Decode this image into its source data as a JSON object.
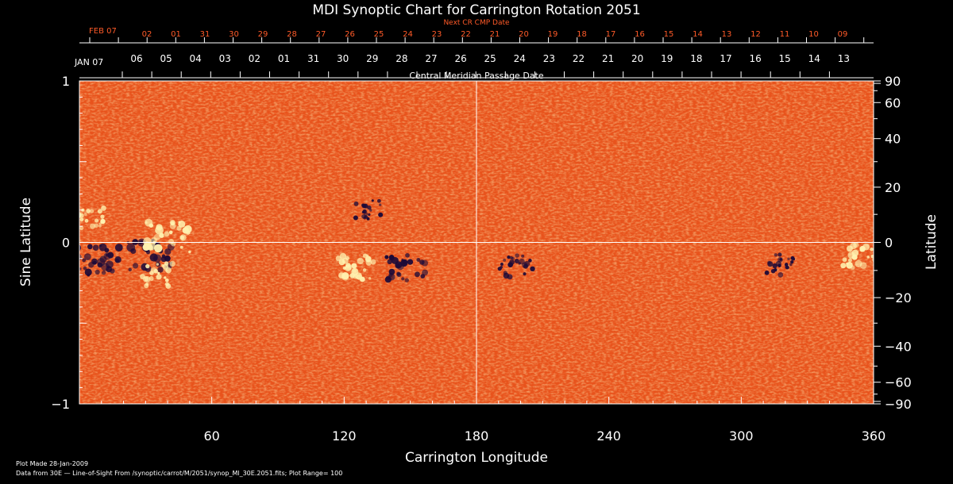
{
  "chart_data": {
    "type": "heatmap",
    "title": "MDI Synoptic Chart for Carrington Rotation 2051",
    "xlabel": "Carrington Longitude",
    "ylabel_left": "Sine Latitude",
    "ylabel_right": "Latitude",
    "xlim": [
      0,
      360
    ],
    "ylim": [
      -1,
      1
    ],
    "x_ticks": [
      "60",
      "120",
      "180",
      "240",
      "300",
      "360"
    ],
    "x_tick_values": [
      60,
      120,
      180,
      240,
      300,
      360
    ],
    "left_ticks": [
      "1",
      "0",
      "−1"
    ],
    "left_tick_values": [
      1,
      0,
      -1
    ],
    "right_ticks": [
      "90",
      "60",
      "40",
      "20",
      "0",
      "−20",
      "−40",
      "−60",
      "−90"
    ],
    "right_tick_values": [
      90,
      60,
      40,
      20,
      0,
      -20,
      -40,
      -60,
      -90
    ],
    "top_axis_label": "Central Meridian Passage Date",
    "top_axis_start": "JAN 07",
    "top_dates": [
      "06",
      "05",
      "04",
      "03",
      "02",
      "01",
      "31",
      "30",
      "29",
      "28",
      "27",
      "26",
      "25",
      "24",
      "23",
      "22",
      "21",
      "20",
      "19",
      "18",
      "17",
      "16",
      "15",
      "14",
      "13"
    ],
    "next_axis_label": "Next CR CMP Date",
    "next_axis_start": "FEB 07",
    "next_dates": [
      "02",
      "01",
      "31",
      "30",
      "29",
      "28",
      "27",
      "26",
      "25",
      "24",
      "23",
      "22",
      "21",
      "20",
      "19",
      "18",
      "17",
      "16",
      "15",
      "14",
      "13",
      "12",
      "11",
      "10",
      "09"
    ],
    "reference_lines": {
      "longitude": 180,
      "sine_latitude": 0
    },
    "colors": {
      "background": "#e8531c",
      "positive": "#fff2b0",
      "negative": "#1c0a38",
      "axis": "#ffffff",
      "next_cr": "#ff5a28"
    },
    "regions": [
      {
        "lon": 8,
        "sinlat": -0.11,
        "sign": "negative",
        "strength": 1.0
      },
      {
        "lon": 32,
        "sinlat": -0.08,
        "sign": "negative",
        "strength": 1.0
      },
      {
        "lon": 40,
        "sinlat": 0.03,
        "sign": "positive",
        "strength": 1.0
      },
      {
        "lon": 35,
        "sinlat": -0.2,
        "sign": "positive",
        "strength": 0.6
      },
      {
        "lon": 125,
        "sinlat": -0.15,
        "sign": "positive",
        "strength": 0.8
      },
      {
        "lon": 148,
        "sinlat": -0.16,
        "sign": "negative",
        "strength": 0.8
      },
      {
        "lon": 131,
        "sinlat": 0.2,
        "sign": "negative",
        "strength": 0.4
      },
      {
        "lon": 198,
        "sinlat": -0.15,
        "sign": "negative",
        "strength": 0.6
      },
      {
        "lon": 318,
        "sinlat": -0.14,
        "sign": "negative",
        "strength": 0.5
      },
      {
        "lon": 355,
        "sinlat": -0.08,
        "sign": "positive",
        "strength": 0.8
      },
      {
        "lon": 5,
        "sinlat": 0.15,
        "sign": "positive",
        "strength": 0.5
      }
    ]
  },
  "footer": {
    "plot_made": "Plot Made 28-Jan-2009",
    "data_source": "Data from 30E — Line-of-Sight From /synoptic/carrot/M/2051/synop_Ml_30E.2051.fits; Plot Range= 100"
  }
}
